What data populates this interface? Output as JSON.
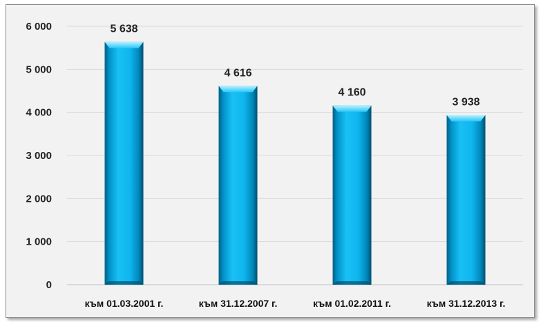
{
  "chart_data": {
    "type": "bar",
    "categories": [
      "към 01.03.2001 г.",
      "към 31.12.2007 г.",
      "към 01.02.2011 г.",
      "към 31.12.2013 г."
    ],
    "values": [
      5638,
      4616,
      4160,
      3938
    ],
    "data_labels": [
      "5 638",
      "4 616",
      "4 160",
      "3 938"
    ],
    "y_ticks": [
      0,
      1000,
      2000,
      3000,
      4000,
      5000,
      6000
    ],
    "y_tick_labels": [
      "0",
      "1 000",
      "2 000",
      "3 000",
      "4 000",
      "5 000",
      "6 000"
    ],
    "ylim": [
      0,
      6000
    ],
    "grid": true,
    "legend": "none",
    "title": "",
    "xlabel": "",
    "ylabel": "",
    "colors": {
      "bar_light": "#7fe3ff",
      "bar_main": "#00b0f0",
      "bar_dark": "#006e99",
      "background": "#f2f2f2"
    }
  }
}
